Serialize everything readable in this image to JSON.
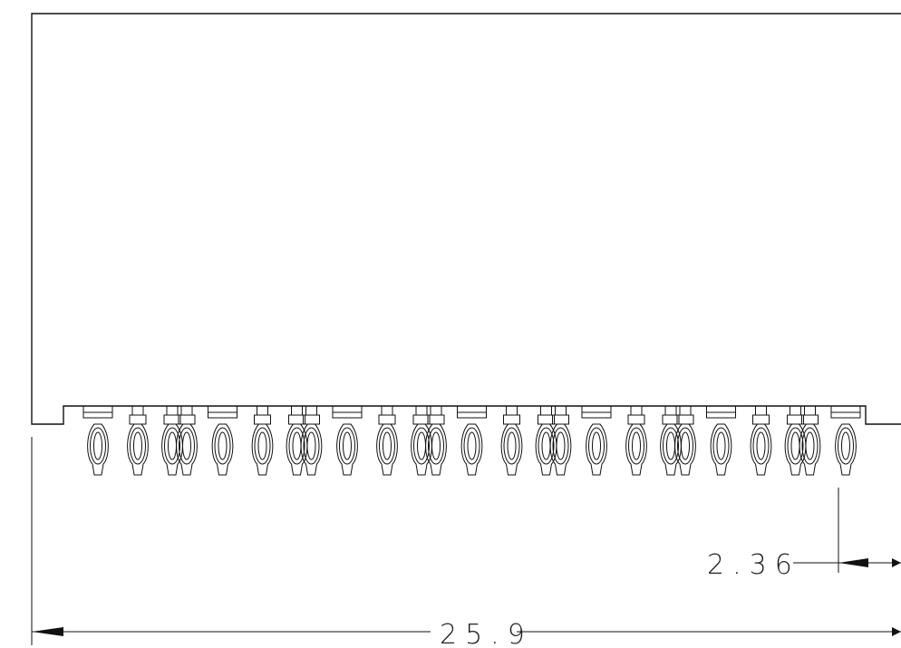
{
  "dimensions": {
    "pin_offset": 2.36,
    "overall_width": 25.9
  }
}
